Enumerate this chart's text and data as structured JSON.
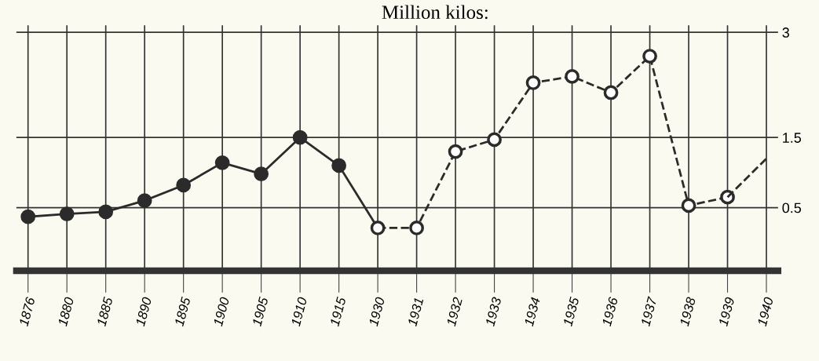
{
  "chart_data": {
    "type": "line",
    "title": "Million kilos:",
    "categories": [
      "1876",
      "1880",
      "1885",
      "1890",
      "1895",
      "1900",
      "1905",
      "1910",
      "1915",
      "1930",
      "1931",
      "1932",
      "1933",
      "1934",
      "1935",
      "1936",
      "1937",
      "1938",
      "1939",
      "1940"
    ],
    "series": [
      {
        "color": "#2b2b2b",
        "line_style": "solid",
        "marker": "circle",
        "values": [
          0.37,
          0.41,
          0.44,
          0.6,
          0.82,
          1.14,
          0.98,
          1.5,
          1.1,
          null,
          null,
          null,
          null,
          null,
          null,
          null,
          null,
          null,
          null,
          null
        ]
      },
      {
        "color": "#2b2b2b",
        "line_style": "solid",
        "values": [
          null,
          null,
          null,
          null,
          null,
          null,
          null,
          null,
          1.1,
          0.21,
          null,
          null,
          null,
          null,
          null,
          null,
          null,
          null,
          null,
          null
        ]
      },
      {
        "color": "#2b2b2b",
        "line_style": "dashed",
        "marker": "circle",
        "values": [
          null,
          null,
          null,
          null,
          null,
          null,
          null,
          null,
          null,
          0.21,
          0.21,
          1.3,
          1.47,
          2.28,
          2.37,
          2.14,
          2.66,
          0.53,
          0.65,
          null
        ]
      },
      {
        "color": "#2b2b2b",
        "line_style": "dashed",
        "values": [
          null,
          null,
          null,
          null,
          null,
          null,
          null,
          null,
          null,
          null,
          null,
          null,
          null,
          null,
          null,
          null,
          null,
          null,
          0.65,
          1.2
        ]
      }
    ],
    "ylim": [
      -0.4,
      3.1
    ],
    "yticks": [
      0.5,
      1.5,
      3
    ],
    "grid": true
  }
}
